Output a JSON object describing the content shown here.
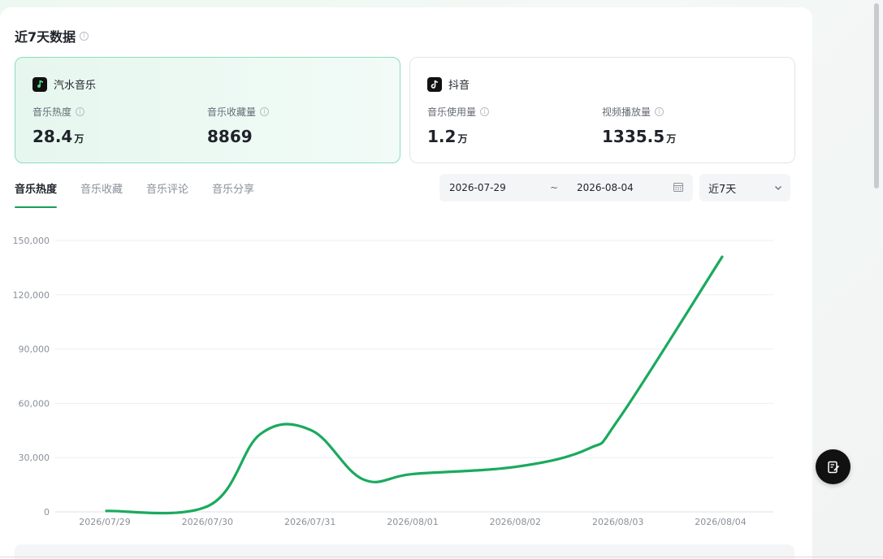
{
  "title": "近7天数据",
  "platforms": [
    {
      "name": "汽水音乐",
      "icon": "music-note-icon",
      "metrics": [
        {
          "label": "音乐热度",
          "value": "28.4",
          "unit": "万"
        },
        {
          "label": "音乐收藏量",
          "value": "8869",
          "unit": ""
        }
      ]
    },
    {
      "name": "抖音",
      "icon": "tiktok-icon",
      "metrics": [
        {
          "label": "音乐使用量",
          "value": "1.2",
          "unit": "万"
        },
        {
          "label": "视频播放量",
          "value": "1335.5",
          "unit": "万"
        }
      ]
    }
  ],
  "tabs": [
    {
      "label": "音乐热度",
      "active": true
    },
    {
      "label": "音乐收藏",
      "active": false
    },
    {
      "label": "音乐评论",
      "active": false
    },
    {
      "label": "音乐分享",
      "active": false
    }
  ],
  "date_range": {
    "start": "2026-07-29",
    "separator": "~",
    "end": "2026-08-04"
  },
  "range_select": {
    "value": "近7天"
  },
  "colors": {
    "accent": "#18a058",
    "line": "#1aaa5e"
  },
  "chart_data": {
    "type": "line",
    "categories": [
      "2026/07/29",
      "2026/07/30",
      "2026/07/31",
      "2026/08/01",
      "2026/08/02",
      "2026/08/03",
      "2026/08/04"
    ],
    "series": [
      {
        "values": [
          500,
          3500,
          45000,
          21000,
          25000,
          52000,
          141000
        ]
      }
    ],
    "extra_points": [
      {
        "x": 1.5,
        "y": 43000
      },
      {
        "x": 2.5,
        "y": 18000
      },
      {
        "x": 4.7,
        "y": 35000
      }
    ],
    "ylim": [
      0,
      150000
    ],
    "yticks": [
      0,
      30000,
      60000,
      90000,
      120000,
      150000
    ],
    "ytick_labels": [
      "0",
      "30,000",
      "60,000",
      "90,000",
      "120,000",
      "150,000"
    ],
    "grid": true
  }
}
